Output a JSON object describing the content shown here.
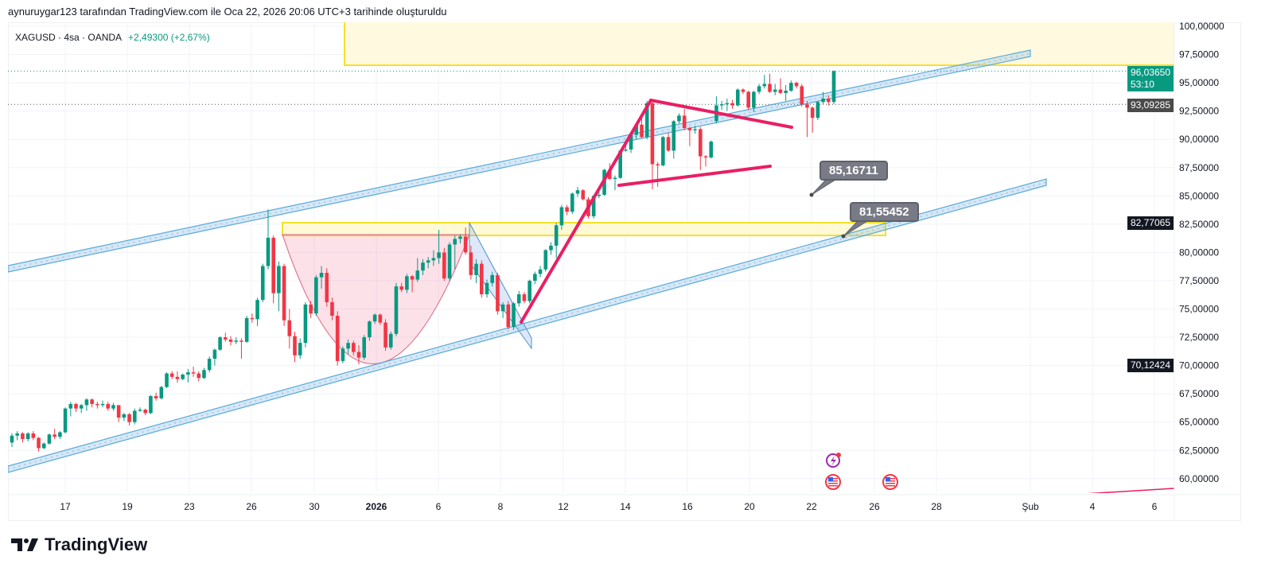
{
  "credit": "aynuruygar123 tarafından TradingView.com ile Oca 22, 2026 20:06 UTC+3 tarihinde oluşturuldu",
  "legend": {
    "symbol": "XAGUSD · 4sa · OANDA",
    "change": "+2,49300 (+2,67%)"
  },
  "price_labels": {
    "last_price": "96,03650",
    "countdown": "53:10",
    "line_price": "93,09285",
    "level_high": "82,77065",
    "level_low": "70,12424"
  },
  "callouts": [
    "85,16711",
    "81,55452"
  ],
  "logo": "TradingView",
  "colors": {
    "up": "#089981",
    "down": "#f23645",
    "channel": "#5aa9d6",
    "zone": "#f5e12a",
    "pattern": "#e91e63",
    "last_price_bg": "#089981"
  },
  "icons": [
    "lightning-event-icon",
    "us-flag-event-icon",
    "us-flag-event-icon"
  ],
  "chart_data": {
    "type": "candlestick",
    "symbol": "XAGUSD",
    "interval": "4sa",
    "exchange": "OANDA",
    "ylim": [
      58.7,
      100.35
    ],
    "grid": true,
    "y_ticks": [
      {
        "v": 100,
        "label": "100,00000"
      },
      {
        "v": 97.5,
        "label": "97,50000"
      },
      {
        "v": 95,
        "label": "95,00000"
      },
      {
        "v": 92.5,
        "label": "92,50000"
      },
      {
        "v": 90,
        "label": "90,00000"
      },
      {
        "v": 87.5,
        "label": "87,50000"
      },
      {
        "v": 85,
        "label": "85,00000"
      },
      {
        "v": 82.5,
        "label": "82,50000"
      },
      {
        "v": 80,
        "label": "80,00000"
      },
      {
        "v": 77.5,
        "label": "77,50000"
      },
      {
        "v": 75,
        "label": "75,00000"
      },
      {
        "v": 72.5,
        "label": "72,50000"
      },
      {
        "v": 70,
        "label": "70,00000"
      },
      {
        "v": 67.5,
        "label": "67,50000"
      },
      {
        "v": 65,
        "label": "65,00000"
      },
      {
        "v": 62.5,
        "label": "62,50000"
      },
      {
        "v": 60,
        "label": "60,00000"
      }
    ],
    "x_ticks": [
      {
        "label": "17"
      },
      {
        "label": "19"
      },
      {
        "label": "23"
      },
      {
        "label": "26"
      },
      {
        "label": "30"
      },
      {
        "label": "2026",
        "bold": true
      },
      {
        "label": "6"
      },
      {
        "label": "8"
      },
      {
        "label": "12"
      },
      {
        "label": "14"
      },
      {
        "label": "16"
      },
      {
        "label": "20"
      },
      {
        "label": "22"
      },
      {
        "label": "26"
      },
      {
        "label": "28"
      },
      {
        "label": "Şub"
      },
      {
        "label": "4"
      },
      {
        "label": "6"
      }
    ],
    "ohlc": [
      [
        63.2,
        64.0,
        62.8,
        63.8
      ],
      [
        63.8,
        64.2,
        63.4,
        64.0
      ],
      [
        64.0,
        64.1,
        63.2,
        63.5
      ],
      [
        63.5,
        64.1,
        63.3,
        64.0
      ],
      [
        64.0,
        64.2,
        63.4,
        63.6
      ],
      [
        63.6,
        63.7,
        62.4,
        62.7
      ],
      [
        62.7,
        63.2,
        62.6,
        63.1
      ],
      [
        63.1,
        64.0,
        63.0,
        63.9
      ],
      [
        63.9,
        64.4,
        63.5,
        63.7
      ],
      [
        63.7,
        64.2,
        63.5,
        64.1
      ],
      [
        64.1,
        66.3,
        64.0,
        66.2
      ],
      [
        66.2,
        66.8,
        65.5,
        66.6
      ],
      [
        66.6,
        66.7,
        65.9,
        66.2
      ],
      [
        66.2,
        66.6,
        65.8,
        66.5
      ],
      [
        66.5,
        67.1,
        66.0,
        67.0
      ],
      [
        67.0,
        67.1,
        66.3,
        66.6
      ],
      [
        66.6,
        66.8,
        66.2,
        66.5
      ],
      [
        66.5,
        66.9,
        66.3,
        66.6
      ],
      [
        66.6,
        66.8,
        66.0,
        66.2
      ],
      [
        66.2,
        66.7,
        66.0,
        66.5
      ],
      [
        66.5,
        66.5,
        65.0,
        65.4
      ],
      [
        65.4,
        65.8,
        65.1,
        65.7
      ],
      [
        65.7,
        65.8,
        64.7,
        65.0
      ],
      [
        65.0,
        66.2,
        64.8,
        66.0
      ],
      [
        66.0,
        66.3,
        65.9,
        66.1
      ],
      [
        66.1,
        66.2,
        65.6,
        65.8
      ],
      [
        65.8,
        67.4,
        65.7,
        67.3
      ],
      [
        67.3,
        67.6,
        66.9,
        67.1
      ],
      [
        67.1,
        68.2,
        67.0,
        68.1
      ],
      [
        68.1,
        69.4,
        68.0,
        69.3
      ],
      [
        69.3,
        69.5,
        68.8,
        69.0
      ],
      [
        69.0,
        69.5,
        68.5,
        68.8
      ],
      [
        68.8,
        69.3,
        68.7,
        69.2
      ],
      [
        69.2,
        69.7,
        68.5,
        69.4
      ],
      [
        69.4,
        69.9,
        69.0,
        69.3
      ],
      [
        69.3,
        69.5,
        68.6,
        68.9
      ],
      [
        68.9,
        69.8,
        68.8,
        69.6
      ],
      [
        69.6,
        70.8,
        69.4,
        70.6
      ],
      [
        70.6,
        71.5,
        70.0,
        71.4
      ],
      [
        71.4,
        72.6,
        71.3,
        72.5
      ],
      [
        72.5,
        72.9,
        72.1,
        72.3
      ],
      [
        72.3,
        72.6,
        71.8,
        72.1
      ],
      [
        72.1,
        72.5,
        71.9,
        72.2
      ],
      [
        72.2,
        72.4,
        70.6,
        72.1
      ],
      [
        72.1,
        74.4,
        72.0,
        74.2
      ],
      [
        74.2,
        74.6,
        73.8,
        74.1
      ],
      [
        74.1,
        76.0,
        73.5,
        75.8
      ],
      [
        75.8,
        79.0,
        75.6,
        78.8
      ],
      [
        78.8,
        83.8,
        78.5,
        81.3
      ],
      [
        81.3,
        81.5,
        75.5,
        76.4
      ],
      [
        76.4,
        79.2,
        74.8,
        78.8
      ],
      [
        78.8,
        79.0,
        73.5,
        74.0
      ],
      [
        74.0,
        75.0,
        71.5,
        72.6
      ],
      [
        72.6,
        73.0,
        70.3,
        70.9
      ],
      [
        70.9,
        72.4,
        70.6,
        72.0
      ],
      [
        72.0,
        75.6,
        71.6,
        75.4
      ],
      [
        75.4,
        75.7,
        74.2,
        74.6
      ],
      [
        74.6,
        78.0,
        74.4,
        77.8
      ],
      [
        77.8,
        78.8,
        76.8,
        78.2
      ],
      [
        78.2,
        78.6,
        75.2,
        75.6
      ],
      [
        75.6,
        76.0,
        74.0,
        74.4
      ],
      [
        74.4,
        74.8,
        70.0,
        70.4
      ],
      [
        70.4,
        71.7,
        70.2,
        71.5
      ],
      [
        71.5,
        72.3,
        71.0,
        72.0
      ],
      [
        72.0,
        72.2,
        70.9,
        71.2
      ],
      [
        71.2,
        71.8,
        70.1,
        70.7
      ],
      [
        70.7,
        72.7,
        70.5,
        72.5
      ],
      [
        72.5,
        74.0,
        72.2,
        73.9
      ],
      [
        73.9,
        74.6,
        73.7,
        74.5
      ],
      [
        74.5,
        74.6,
        73.6,
        73.8
      ],
      [
        73.8,
        74.1,
        71.3,
        71.6
      ],
      [
        71.6,
        73.0,
        71.4,
        72.8
      ],
      [
        72.8,
        77.3,
        72.6,
        77.0
      ],
      [
        77.0,
        77.3,
        76.5,
        76.7
      ],
      [
        76.7,
        78.1,
        76.4,
        77.9
      ],
      [
        77.9,
        78.0,
        76.5,
        77.6
      ],
      [
        77.6,
        79.5,
        77.4,
        78.4
      ],
      [
        78.4,
        79.4,
        78.0,
        79.1
      ],
      [
        79.1,
        79.6,
        78.6,
        79.3
      ],
      [
        79.3,
        80.2,
        78.8,
        79.5
      ],
      [
        79.5,
        82.0,
        79.0,
        80.0
      ],
      [
        80.0,
        80.4,
        77.5,
        77.7
      ],
      [
        77.7,
        80.9,
        77.5,
        80.7
      ],
      [
        80.7,
        81.5,
        78.5,
        81.2
      ],
      [
        81.2,
        81.6,
        80.8,
        81.4
      ],
      [
        81.4,
        82.2,
        79.8,
        80.0
      ],
      [
        80.0,
        80.6,
        77.6,
        78.0
      ],
      [
        78.0,
        79.4,
        77.3,
        79.0
      ],
      [
        79.0,
        79.3,
        76.0,
        76.3
      ],
      [
        76.3,
        77.6,
        76.0,
        77.3
      ],
      [
        77.3,
        78.3,
        77.0,
        78.0
      ],
      [
        78.0,
        78.2,
        74.5,
        74.8
      ],
      [
        74.8,
        75.6,
        74.2,
        75.4
      ],
      [
        75.4,
        75.7,
        73.2,
        73.4
      ],
      [
        73.4,
        75.6,
        73.2,
        75.5
      ],
      [
        75.5,
        76.6,
        75.2,
        76.3
      ],
      [
        76.3,
        76.5,
        75.5,
        75.7
      ],
      [
        75.7,
        77.6,
        75.5,
        77.5
      ],
      [
        77.5,
        78.3,
        77.2,
        78.1
      ],
      [
        78.1,
        78.8,
        77.8,
        78.5
      ],
      [
        78.5,
        80.3,
        78.3,
        80.2
      ],
      [
        80.2,
        80.9,
        79.8,
        80.6
      ],
      [
        80.6,
        82.6,
        79.5,
        82.4
      ],
      [
        82.4,
        84.2,
        82.0,
        84.0
      ],
      [
        84.0,
        84.2,
        83.3,
        83.6
      ],
      [
        83.6,
        85.3,
        83.4,
        85.2
      ],
      [
        85.2,
        85.8,
        84.9,
        85.5
      ],
      [
        85.5,
        85.6,
        84.6,
        84.7
      ],
      [
        84.7,
        84.9,
        83.0,
        83.2
      ],
      [
        83.2,
        85.1,
        83.0,
        85.0
      ],
      [
        85.0,
        85.4,
        84.8,
        85.1
      ],
      [
        85.1,
        87.4,
        85.0,
        87.3
      ],
      [
        87.3,
        87.9,
        86.4,
        86.5
      ],
      [
        86.5,
        86.8,
        85.5,
        86.6
      ],
      [
        86.6,
        89.1,
        86.5,
        89.0
      ],
      [
        89.0,
        89.9,
        88.9,
        89.1
      ],
      [
        89.1,
        90.5,
        88.8,
        90.4
      ],
      [
        90.4,
        91.4,
        90.0,
        91.3
      ],
      [
        91.3,
        91.9,
        90.1,
        90.2
      ],
      [
        90.2,
        93.4,
        90.0,
        93.2
      ],
      [
        93.2,
        93.4,
        85.6,
        87.8
      ],
      [
        87.8,
        88.0,
        85.8,
        87.7
      ],
      [
        87.7,
        90.3,
        87.6,
        90.2
      ],
      [
        90.2,
        90.6,
        88.9,
        89.0
      ],
      [
        89.0,
        91.7,
        88.3,
        91.6
      ],
      [
        91.6,
        92.3,
        91.4,
        92.1
      ],
      [
        92.1,
        92.7,
        90.8,
        91.0
      ],
      [
        91.0,
        91.1,
        89.4,
        90.8
      ],
      [
        90.8,
        91.2,
        90.5,
        90.9
      ],
      [
        90.9,
        91.1,
        87.3,
        88.5
      ],
      [
        88.5,
        88.6,
        87.6,
        88.4
      ],
      [
        88.4,
        89.9,
        88.3,
        89.8
      ],
      [
        91.6,
        93.8,
        91.4,
        93.0
      ],
      [
        93.0,
        93.4,
        92.6,
        93.1
      ],
      [
        93.1,
        93.6,
        92.5,
        93.2
      ],
      [
        93.2,
        93.5,
        92.7,
        93.0
      ],
      [
        93.0,
        94.5,
        92.9,
        94.4
      ],
      [
        94.4,
        94.5,
        94.0,
        94.2
      ],
      [
        94.2,
        94.3,
        92.6,
        92.8
      ],
      [
        92.8,
        94.3,
        92.4,
        94.2
      ],
      [
        94.2,
        94.9,
        94.0,
        94.7
      ],
      [
        94.7,
        95.7,
        94.5,
        94.9
      ],
      [
        94.9,
        95.8,
        94.1,
        94.2
      ],
      [
        94.2,
        94.9,
        93.9,
        94.4
      ],
      [
        94.4,
        95.4,
        94.0,
        94.1
      ],
      [
        94.1,
        94.8,
        93.4,
        94.3
      ],
      [
        94.3,
        95.2,
        94.2,
        95.0
      ],
      [
        95.0,
        95.1,
        94.5,
        94.7
      ],
      [
        94.7,
        94.9,
        92.9,
        93.1
      ],
      [
        93.1,
        93.4,
        90.2,
        92.8
      ],
      [
        92.8,
        92.9,
        90.6,
        91.9
      ],
      [
        91.9,
        93.4,
        91.7,
        93.3
      ],
      [
        93.3,
        94.2,
        93.1,
        93.6
      ],
      [
        93.6,
        93.9,
        93.0,
        93.3
      ],
      [
        93.3,
        96.1,
        93.1,
        96.0365
      ]
    ]
  }
}
